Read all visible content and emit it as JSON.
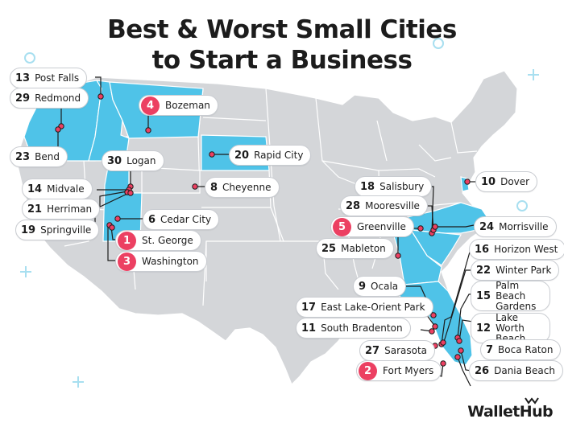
{
  "title_line1": "Best & Worst Small Cities",
  "title_line2": "to Start a Business",
  "brand": "WalletHub",
  "colors": {
    "highlight_state": "#4fc3e8",
    "base_state": "#d4d6d9",
    "state_border": "#ffffff",
    "marker": "#ec4062",
    "badge_top": "#ec4062",
    "deco": "#a8dff0"
  },
  "cities": [
    {
      "rank": "13",
      "name": "Post Falls",
      "top": false
    },
    {
      "rank": "29",
      "name": "Redmond",
      "top": false
    },
    {
      "rank": "4",
      "name": "Bozeman",
      "top": true
    },
    {
      "rank": "23",
      "name": "Bend",
      "top": false
    },
    {
      "rank": "30",
      "name": "Logan",
      "top": false
    },
    {
      "rank": "20",
      "name": "Rapid City",
      "top": false
    },
    {
      "rank": "14",
      "name": "Midvale",
      "top": false
    },
    {
      "rank": "8",
      "name": "Cheyenne",
      "top": false
    },
    {
      "rank": "21",
      "name": "Herriman",
      "top": false
    },
    {
      "rank": "6",
      "name": "Cedar City",
      "top": false
    },
    {
      "rank": "19",
      "name": "Springville",
      "top": false
    },
    {
      "rank": "1",
      "name": "St. George",
      "top": true
    },
    {
      "rank": "3",
      "name": "Washington",
      "top": true
    },
    {
      "rank": "10",
      "name": "Dover",
      "top": false
    },
    {
      "rank": "18",
      "name": "Salisbury",
      "top": false
    },
    {
      "rank": "28",
      "name": "Mooresville",
      "top": false
    },
    {
      "rank": "5",
      "name": "Greenville",
      "top": true
    },
    {
      "rank": "24",
      "name": "Morrisville",
      "top": false
    },
    {
      "rank": "25",
      "name": "Mableton",
      "top": false
    },
    {
      "rank": "16",
      "name": "Horizon West",
      "top": false
    },
    {
      "rank": "22",
      "name": "Winter Park",
      "top": false
    },
    {
      "rank": "9",
      "name": "Ocala",
      "top": false
    },
    {
      "rank": "15",
      "name": "Palm Beach Gardens",
      "top": false
    },
    {
      "rank": "17",
      "name": "East Lake-Orient Park",
      "top": false
    },
    {
      "rank": "12",
      "name": "Lake Worth Beach",
      "top": false
    },
    {
      "rank": "11",
      "name": "South Bradenton",
      "top": false
    },
    {
      "rank": "7",
      "name": "Boca Raton",
      "top": false
    },
    {
      "rank": "27",
      "name": "Sarasota",
      "top": false
    },
    {
      "rank": "26",
      "name": "Dania Beach",
      "top": false
    },
    {
      "rank": "2",
      "name": "Fort Myers",
      "top": true
    }
  ]
}
